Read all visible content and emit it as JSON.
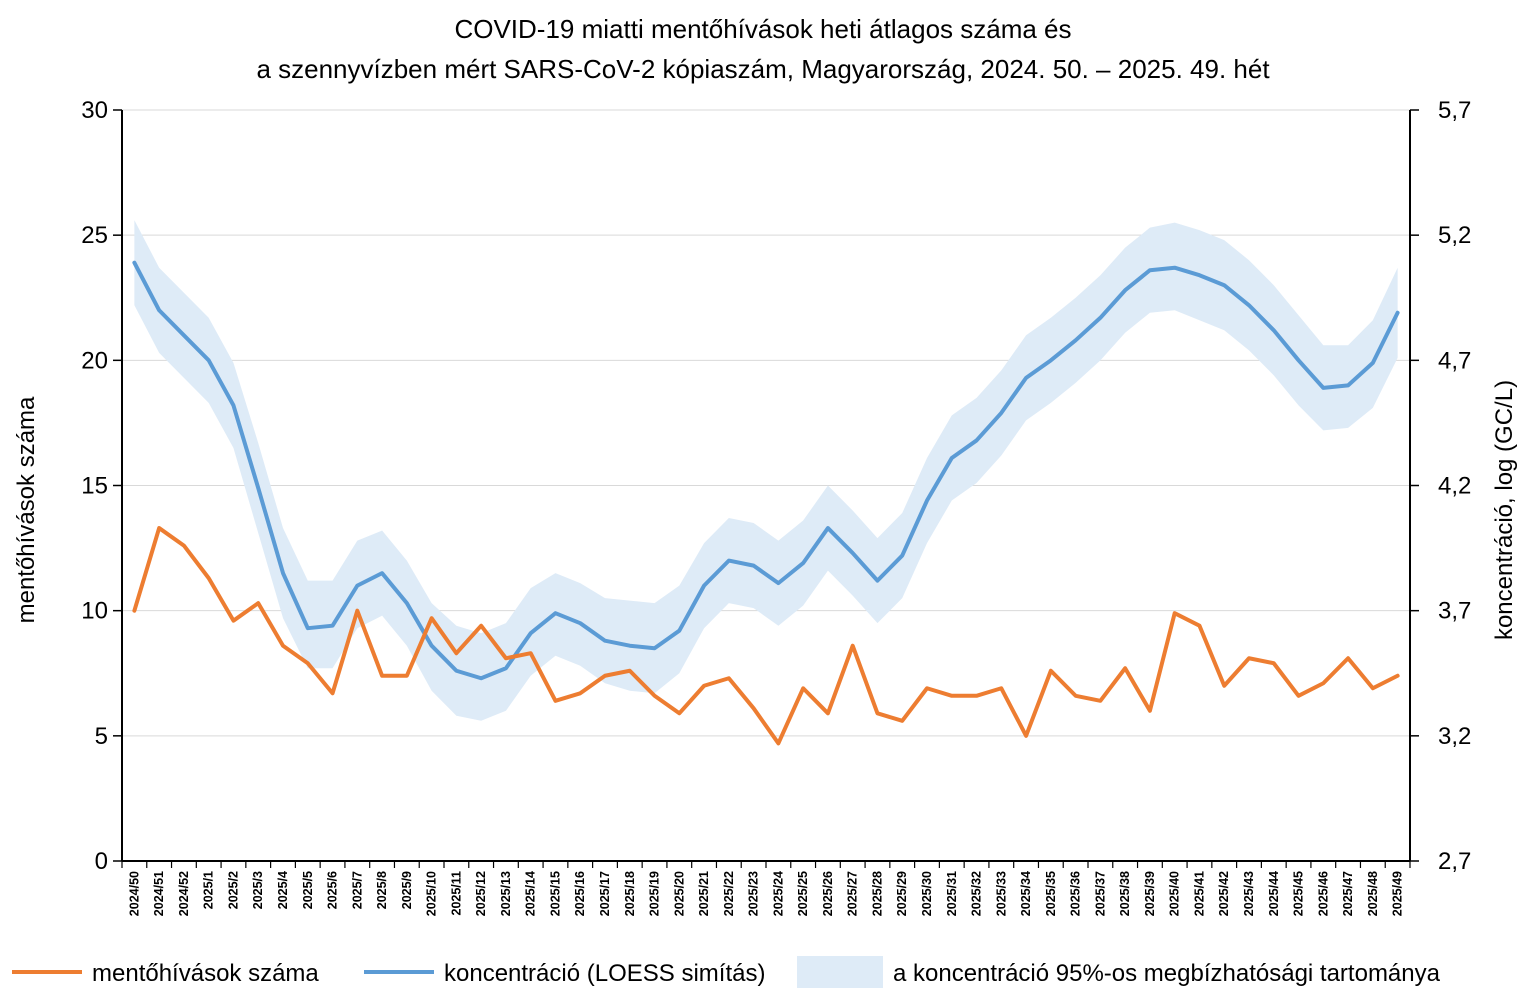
{
  "chart_data": {
    "type": "line",
    "title_lines": [
      "COVID-19 miatti mentőhívások heti átlagos száma és",
      "a szennyvízben mért SARS-CoV-2 kópiaszám, Magyarország, 2024. 50. – 2025. 49. hét"
    ],
    "ylabel_left": "mentőhívások száma",
    "ylabel_right": "koncentráció, log (GC/L)",
    "ylim_left": [
      0,
      30
    ],
    "ylim_right": [
      2.7,
      5.7
    ],
    "yticks_left": [
      "0",
      "5",
      "10",
      "15",
      "20",
      "25",
      "30"
    ],
    "yticks_right": [
      "2,7",
      "3,2",
      "3,7",
      "4,2",
      "4,7",
      "5,2",
      "5,7"
    ],
    "grid": "horizontal",
    "legend_position": "bottom",
    "colors": {
      "calls": "#ED7D31",
      "concentration": "#5B9BD5",
      "band": "#DEEBF7",
      "grid": "#D9D9D9"
    },
    "categories": [
      "2024/50",
      "2024/51",
      "2024/52",
      "2025/1",
      "2025/2",
      "2025/3",
      "2025/4",
      "2025/5",
      "2025/6",
      "2025/7",
      "2025/8",
      "2025/9",
      "2025/10",
      "2025/11",
      "2025/12",
      "2025/13",
      "2025/14",
      "2025/15",
      "2025/16",
      "2025/17",
      "2025/18",
      "2025/19",
      "2025/20",
      "2025/21",
      "2025/22",
      "2025/23",
      "2025/24",
      "2025/25",
      "2025/26",
      "2025/27",
      "2025/28",
      "2025/29",
      "2025/30",
      "2025/31",
      "2025/32",
      "2025/33",
      "2025/34",
      "2025/35",
      "2025/36",
      "2025/37",
      "2025/38",
      "2025/39",
      "2025/40",
      "2025/41",
      "2025/42",
      "2025/43",
      "2025/44",
      "2025/45",
      "2025/46",
      "2025/47",
      "2025/48",
      "2025/49"
    ],
    "series": [
      {
        "name": "mentőhívások száma",
        "axis": "left",
        "values": [
          10.0,
          13.3,
          12.6,
          11.3,
          9.6,
          10.3,
          8.6,
          7.9,
          6.7,
          10.0,
          7.4,
          7.4,
          9.7,
          8.3,
          9.4,
          8.1,
          8.3,
          6.4,
          6.7,
          7.4,
          7.6,
          6.6,
          5.9,
          7.0,
          7.3,
          6.1,
          4.7,
          6.9,
          5.9,
          8.6,
          5.9,
          5.6,
          6.9,
          6.6,
          6.6,
          6.9,
          5.0,
          7.6,
          6.6,
          6.4,
          7.7,
          6.0,
          9.9,
          9.4,
          7.0,
          8.1,
          7.9,
          6.6,
          7.1,
          8.1,
          6.9,
          7.4
        ]
      },
      {
        "name": "koncentráció (LOESS simítás)",
        "axis": "right",
        "values": [
          5.09,
          4.9,
          4.8,
          4.7,
          4.52,
          4.19,
          3.85,
          3.63,
          3.64,
          3.8,
          3.85,
          3.73,
          3.56,
          3.46,
          3.43,
          3.47,
          3.61,
          3.69,
          3.65,
          3.58,
          3.56,
          3.55,
          3.62,
          3.8,
          3.9,
          3.88,
          3.81,
          3.89,
          4.03,
          3.93,
          3.82,
          3.92,
          4.14,
          4.31,
          4.38,
          4.49,
          4.63,
          4.7,
          4.78,
          4.87,
          4.98,
          5.06,
          5.07,
          5.04,
          5.0,
          4.92,
          4.82,
          4.7,
          4.59,
          4.6,
          4.69,
          4.89
        ]
      },
      {
        "name": "a koncentráció 95%-os megbízhatósági tartománya",
        "axis": "right",
        "type": "band",
        "lower": [
          4.92,
          4.73,
          4.63,
          4.53,
          4.35,
          4.01,
          3.67,
          3.47,
          3.47,
          3.63,
          3.68,
          3.56,
          3.38,
          3.28,
          3.26,
          3.3,
          3.44,
          3.52,
          3.48,
          3.41,
          3.38,
          3.37,
          3.45,
          3.63,
          3.73,
          3.71,
          3.64,
          3.72,
          3.86,
          3.76,
          3.65,
          3.75,
          3.97,
          4.14,
          4.21,
          4.32,
          4.46,
          4.53,
          4.61,
          4.7,
          4.81,
          4.89,
          4.9,
          4.86,
          4.82,
          4.74,
          4.64,
          4.52,
          4.42,
          4.43,
          4.51,
          4.71
        ],
        "upper": [
          5.26,
          5.07,
          4.97,
          4.87,
          4.69,
          4.37,
          4.03,
          3.82,
          3.82,
          3.98,
          4.02,
          3.9,
          3.73,
          3.64,
          3.61,
          3.65,
          3.79,
          3.85,
          3.81,
          3.75,
          3.74,
          3.73,
          3.8,
          3.97,
          4.07,
          4.05,
          3.98,
          4.06,
          4.2,
          4.1,
          3.99,
          4.09,
          4.31,
          4.48,
          4.55,
          4.66,
          4.8,
          4.87,
          4.95,
          5.04,
          5.15,
          5.23,
          5.25,
          5.22,
          5.18,
          5.1,
          5.0,
          4.88,
          4.76,
          4.76,
          4.86,
          5.07
        ]
      }
    ]
  }
}
